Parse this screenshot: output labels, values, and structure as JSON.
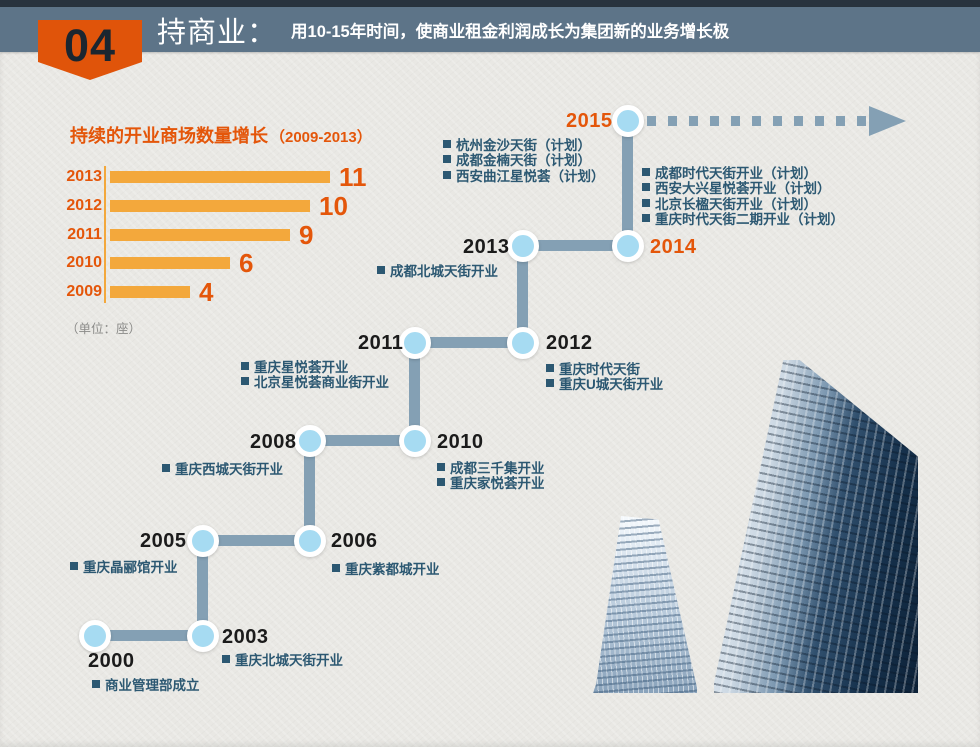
{
  "header": {
    "badge": "04",
    "title": "持商业：",
    "subtitle": "用10-15年时间，使商业租金利润成长为集团新的业务增长极"
  },
  "chart": {
    "title": "持续的开业商场数量增长",
    "title_range": "（2009-2013）",
    "unit_note": "（单位：座）"
  },
  "chart_data": {
    "type": "bar",
    "orientation": "horizontal",
    "title": "持续的开业商场数量增长（2009-2013）",
    "categories": [
      "2013",
      "2012",
      "2011",
      "2010",
      "2009"
    ],
    "values": [
      11,
      10,
      9,
      6,
      4
    ],
    "xlabel": "",
    "ylabel": "",
    "xlim": [
      0,
      11
    ],
    "unit": "座",
    "grid": false,
    "legend": false
  },
  "timeline": {
    "events": [
      {
        "year": "2000",
        "items": [
          "商业管理部成立"
        ]
      },
      {
        "year": "2003",
        "items": [
          "重庆北城天街开业"
        ]
      },
      {
        "year": "2005",
        "items": [
          "重庆晶郦馆开业"
        ]
      },
      {
        "year": "2006",
        "items": [
          "重庆紫都城开业"
        ]
      },
      {
        "year": "2008",
        "items": [
          "重庆西城天街开业"
        ]
      },
      {
        "year": "2010",
        "items": [
          "成都三千集开业",
          "重庆家悦荟开业"
        ]
      },
      {
        "year": "2011",
        "items": [
          "重庆星悦荟开业",
          "北京星悦荟商业街开业"
        ]
      },
      {
        "year": "2012",
        "items": [
          "重庆时代天街",
          "重庆U城天街开业"
        ]
      },
      {
        "year": "2013",
        "items": [
          "成都北城天街开业"
        ]
      },
      {
        "year": "2014",
        "items": [
          "成都时代天街开业（计划）",
          "西安大兴星悦荟开业（计划）",
          "北京长楹天街开业（计划）",
          "重庆时代天街二期开业（计划）"
        ]
      },
      {
        "year": "2015",
        "items": [
          "杭州金沙天街（计划）",
          "成都金楠天街（计划）",
          "西安曲江星悦荟（计划）"
        ]
      }
    ]
  },
  "colors": {
    "accent_orange": "#E4560A",
    "bar_fill": "#F3A83C",
    "band_blue": "#5D7488",
    "dark_strip": "#28333E",
    "line_blue": "#84A0B4",
    "node_fill": "#A6DBF2",
    "item_text": "#2C5872",
    "year_black": "#1B1B1B",
    "unit_gray": "#8B8B89",
    "paper": "#E9E8E4"
  }
}
